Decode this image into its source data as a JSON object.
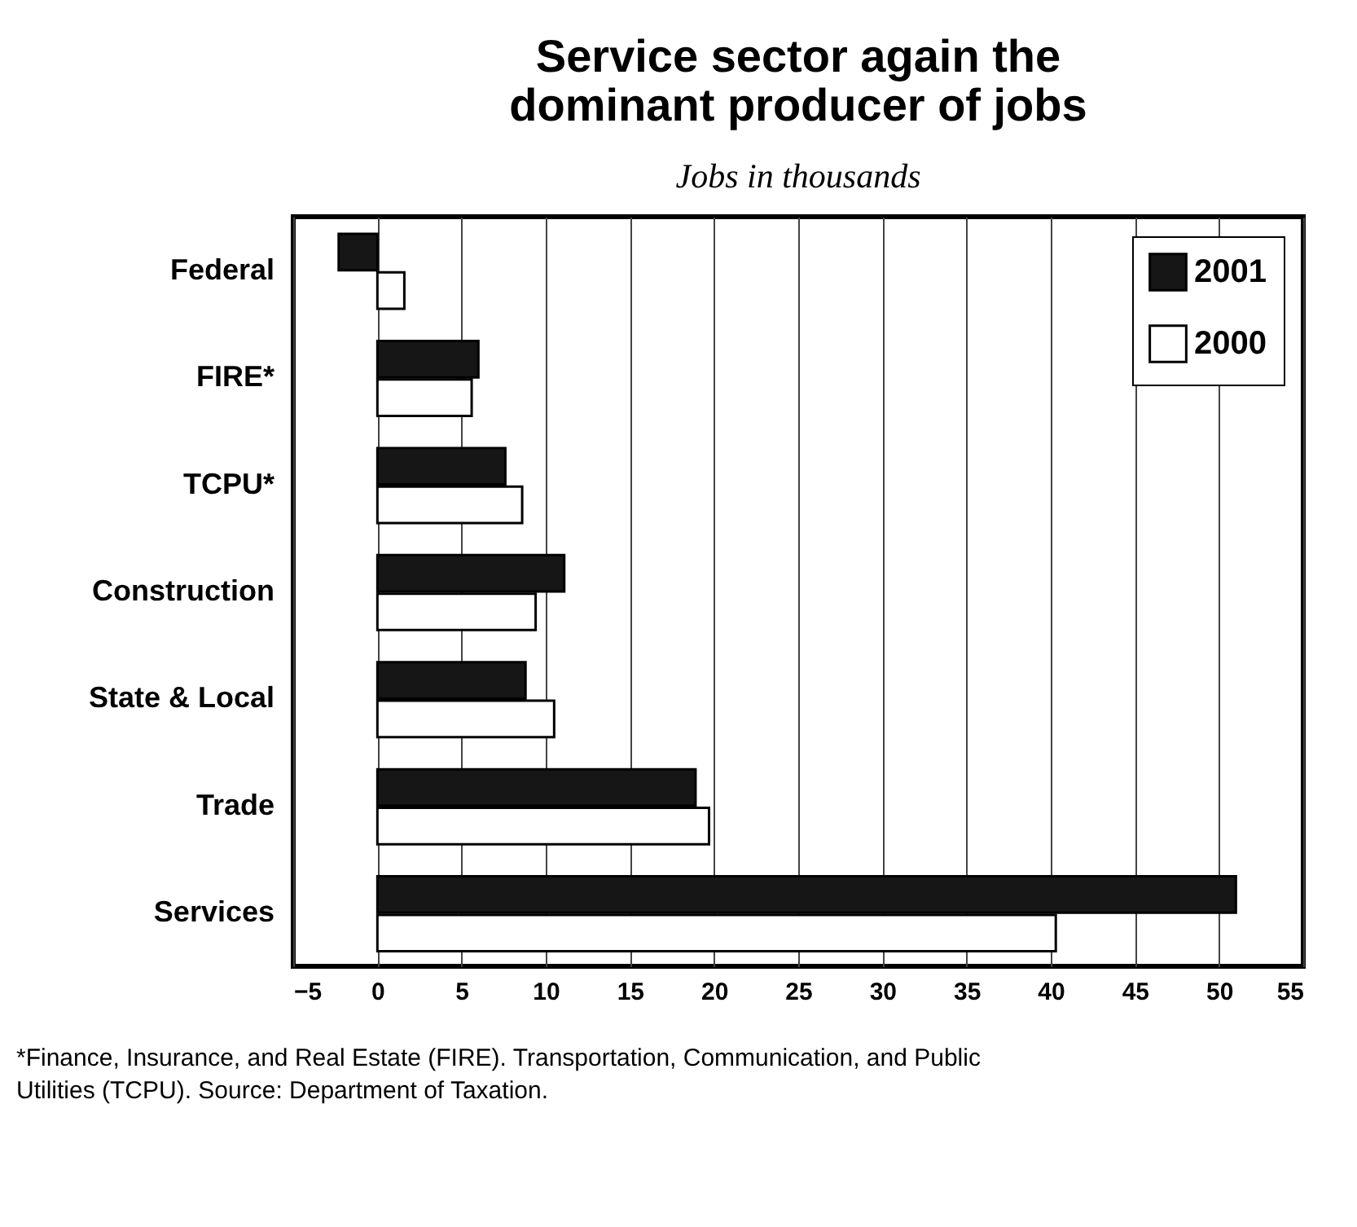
{
  "chart_data": {
    "type": "bar",
    "orientation": "horizontal",
    "title": "Service sector again the dominant producer of jobs",
    "subtitle": "Jobs in thousands",
    "categories": [
      "Federal",
      "FIRE*",
      "TCPU*",
      "Construction",
      "State & Local",
      "Trade",
      "Services"
    ],
    "series": [
      {
        "name": "2001",
        "color": "#161616",
        "values": [
          -2.3,
          6.0,
          7.6,
          11.1,
          8.8,
          18.9,
          51.0
        ]
      },
      {
        "name": "2000",
        "color": "#ffffff",
        "values": [
          1.6,
          5.6,
          8.6,
          9.4,
          10.5,
          19.7,
          40.3
        ]
      }
    ],
    "xlim": [
      -5,
      55
    ],
    "xticks": [
      -5,
      0,
      5,
      10,
      15,
      20,
      25,
      30,
      35,
      40,
      45,
      50,
      55
    ],
    "grid": "x",
    "legend": "top right",
    "annotations": [
      "*Finance, Insurance, and Real Estate (FIRE).  Transportation, Communication, and Public Utilities (TCPU).  Source: Department of Taxation."
    ]
  }
}
